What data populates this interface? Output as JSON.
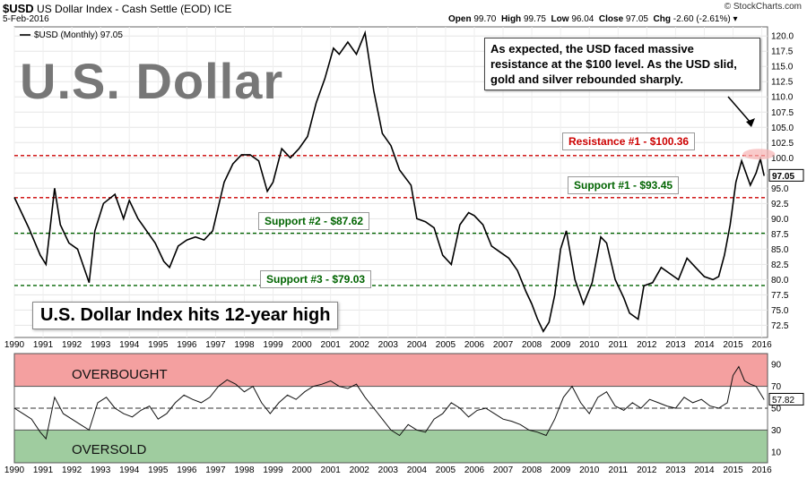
{
  "header": {
    "symbol": "$USD",
    "description": "US Dollar Index - Cash Settle (EOD)",
    "exchange": "ICE",
    "date": "5-Feb-2016",
    "open_label": "Open",
    "open": "99.70",
    "high_label": "High",
    "high": "99.75",
    "low_label": "Low",
    "low": "96.04",
    "close_label": "Close",
    "close": "97.05",
    "chg_label": "Chg",
    "chg": "-2.60 (-2.61%)",
    "copyright": "© StockCharts.com"
  },
  "legend_main": "$USD (Monthly) 97.05",
  "big_title": "U.S. Dollar",
  "subtitle": "U.S. Dollar Index hits 12-year high",
  "annotation": "As expected, the USD faced massive resistance at the $100 level. As the USD slid, gold and silver rebounded sharply.",
  "last_price_tag": "97.05",
  "rsi_last_tag": "57.82",
  "zone_labels": {
    "overbought": "OVERBOUGHT",
    "oversold": "OVERSOLD"
  },
  "colors": {
    "resistance": "#cc0000",
    "support": "#006400",
    "price": "#000000",
    "overbought_fill": "#f4a0a0",
    "oversold_fill": "#9fcc9f"
  },
  "chart_data": [
    {
      "type": "line",
      "series": [
        {
          "name": "$USD (Monthly)",
          "x": [
            1990,
            1990.5,
            1990.9,
            1991.1,
            1991.4,
            1991.6,
            1991.9,
            1992.2,
            1992.6,
            1992.8,
            1993.1,
            1993.5,
            1993.8,
            1994.0,
            1994.3,
            1994.6,
            1994.9,
            1995.2,
            1995.4,
            1995.7,
            1996.0,
            1996.3,
            1996.6,
            1996.9,
            1997.1,
            1997.3,
            1997.6,
            1997.9,
            1998.2,
            1998.5,
            1998.8,
            1999.0,
            1999.3,
            1999.6,
            1999.9,
            2000.2,
            2000.5,
            2000.8,
            2001.1,
            2001.3,
            2001.6,
            2001.9,
            2002.2,
            2002.5,
            2002.8,
            2003.1,
            2003.4,
            2003.8,
            2004.0,
            2004.3,
            2004.6,
            2004.9,
            2005.2,
            2005.5,
            2005.8,
            2006.0,
            2006.3,
            2006.6,
            2006.9,
            2007.2,
            2007.5,
            2007.8,
            2008.0,
            2008.2,
            2008.4,
            2008.6,
            2008.8,
            2009.0,
            2009.2,
            2009.5,
            2009.8,
            2010.1,
            2010.4,
            2010.6,
            2010.9,
            2011.2,
            2011.4,
            2011.7,
            2011.9,
            2012.2,
            2012.5,
            2012.8,
            2013.1,
            2013.4,
            2013.7,
            2014.0,
            2014.3,
            2014.5,
            2014.7,
            2014.9,
            2015.1,
            2015.3,
            2015.6,
            2015.8,
            2015.95,
            2016.08
          ],
          "values": [
            93.5,
            88.5,
            84.0,
            82.5,
            95.0,
            89.0,
            86.0,
            85.0,
            79.5,
            88.0,
            92.5,
            94.0,
            90.0,
            93.0,
            90.0,
            88.0,
            86.0,
            83.0,
            82.0,
            85.5,
            86.5,
            87.0,
            86.5,
            88.0,
            92.0,
            96.0,
            99.0,
            100.5,
            100.5,
            99.5,
            94.5,
            96.0,
            101.5,
            100.0,
            101.5,
            103.5,
            109.0,
            113.0,
            118.0,
            117.0,
            119.0,
            117.0,
            120.5,
            111.0,
            104.0,
            102.0,
            98.0,
            95.5,
            90.0,
            89.5,
            88.5,
            84.0,
            82.5,
            89.0,
            91.0,
            90.5,
            89.0,
            85.5,
            84.5,
            83.5,
            81.5,
            78.0,
            76.0,
            73.5,
            71.5,
            73.0,
            77.5,
            85.0,
            88.0,
            80.0,
            76.0,
            79.5,
            87.0,
            86.0,
            80.0,
            77.0,
            74.5,
            73.5,
            79.0,
            79.5,
            82.0,
            81.0,
            80.0,
            83.5,
            82.0,
            80.5,
            80.0,
            80.5,
            84.0,
            89.0,
            96.0,
            99.5,
            95.5,
            97.5,
            99.8,
            97.05
          ]
        }
      ],
      "yaxis_ticks": [
        72.5,
        75.0,
        77.5,
        80.0,
        82.5,
        85.0,
        87.5,
        90.0,
        92.5,
        95.0,
        97.5,
        100.0,
        102.5,
        105.0,
        107.5,
        110.0,
        112.5,
        115.0,
        117.5,
        120.0
      ],
      "ylim": [
        70.5,
        121.5
      ],
      "x_tick_labels": [
        "1990",
        "1991",
        "1992",
        "1993",
        "1994",
        "1995",
        "1996",
        "1997",
        "1998",
        "1999",
        "2000",
        "2001",
        "2002",
        "2003",
        "2004",
        "2005",
        "2006",
        "2007",
        "2008",
        "2009",
        "2010",
        "2011",
        "2012",
        "2013",
        "2014",
        "2015",
        "2016"
      ],
      "hlines": [
        {
          "label": "Resistance #1 - $100.36",
          "value": 100.36,
          "kind": "resistance"
        },
        {
          "label": "Support #1 - $93.45",
          "value": 93.45,
          "kind": "support-red"
        },
        {
          "label": "Support #2 - $87.62",
          "value": 87.62,
          "kind": "support"
        },
        {
          "label": "Support #3 - $79.03",
          "value": 79.03,
          "kind": "support"
        }
      ]
    },
    {
      "type": "line",
      "series": [
        {
          "name": "RSI",
          "x": [
            1990,
            1990.3,
            1990.6,
            1990.9,
            1991.1,
            1991.4,
            1991.7,
            1992.0,
            1992.3,
            1992.6,
            1992.9,
            1993.2,
            1993.5,
            1993.8,
            1994.1,
            1994.4,
            1994.7,
            1995.0,
            1995.3,
            1995.6,
            1995.9,
            1996.2,
            1996.5,
            1996.8,
            1997.1,
            1997.4,
            1997.7,
            1998.0,
            1998.3,
            1998.6,
            1998.9,
            1999.2,
            1999.5,
            1999.8,
            2000.1,
            2000.4,
            2000.7,
            2001.0,
            2001.3,
            2001.6,
            2001.9,
            2002.2,
            2002.5,
            2002.8,
            2003.1,
            2003.4,
            2003.7,
            2004.0,
            2004.3,
            2004.6,
            2004.9,
            2005.2,
            2005.5,
            2005.8,
            2006.1,
            2006.4,
            2006.7,
            2007.0,
            2007.3,
            2007.6,
            2007.9,
            2008.2,
            2008.5,
            2008.8,
            2009.1,
            2009.4,
            2009.7,
            2010.0,
            2010.3,
            2010.6,
            2010.9,
            2011.2,
            2011.5,
            2011.8,
            2012.1,
            2012.4,
            2012.7,
            2013.0,
            2013.3,
            2013.6,
            2013.9,
            2014.2,
            2014.5,
            2014.8,
            2015.0,
            2015.2,
            2015.4,
            2015.6,
            2015.8,
            2016.08
          ],
          "values": [
            50,
            45,
            40,
            28,
            22,
            60,
            45,
            40,
            35,
            30,
            55,
            60,
            50,
            45,
            42,
            48,
            52,
            40,
            45,
            55,
            62,
            58,
            55,
            60,
            70,
            76,
            72,
            65,
            70,
            55,
            45,
            55,
            62,
            58,
            65,
            70,
            72,
            75,
            70,
            68,
            72,
            60,
            50,
            40,
            30,
            25,
            35,
            30,
            28,
            40,
            45,
            55,
            50,
            42,
            48,
            50,
            45,
            40,
            38,
            35,
            30,
            28,
            25,
            40,
            60,
            70,
            55,
            45,
            60,
            65,
            52,
            48,
            55,
            50,
            58,
            55,
            52,
            50,
            60,
            55,
            58,
            52,
            50,
            55,
            80,
            88,
            75,
            72,
            70,
            57.82
          ]
        }
      ],
      "yaxis_ticks": [
        10,
        30,
        50,
        70,
        90
      ],
      "ylim": [
        0,
        100
      ],
      "x_tick_labels": [
        "1990",
        "1991",
        "1992",
        "1993",
        "1994",
        "1995",
        "1996",
        "1997",
        "1998",
        "1999",
        "2000",
        "2001",
        "2002",
        "2003",
        "2004",
        "2005",
        "2006",
        "2007",
        "2008",
        "2009",
        "2010",
        "2011",
        "2012",
        "2013",
        "2014",
        "2015",
        "2016"
      ],
      "zones": [
        {
          "label": "OVERBOUGHT",
          "from": 70,
          "to": 100
        },
        {
          "label": "OVERSOLD",
          "from": 0,
          "to": 30
        }
      ]
    }
  ]
}
